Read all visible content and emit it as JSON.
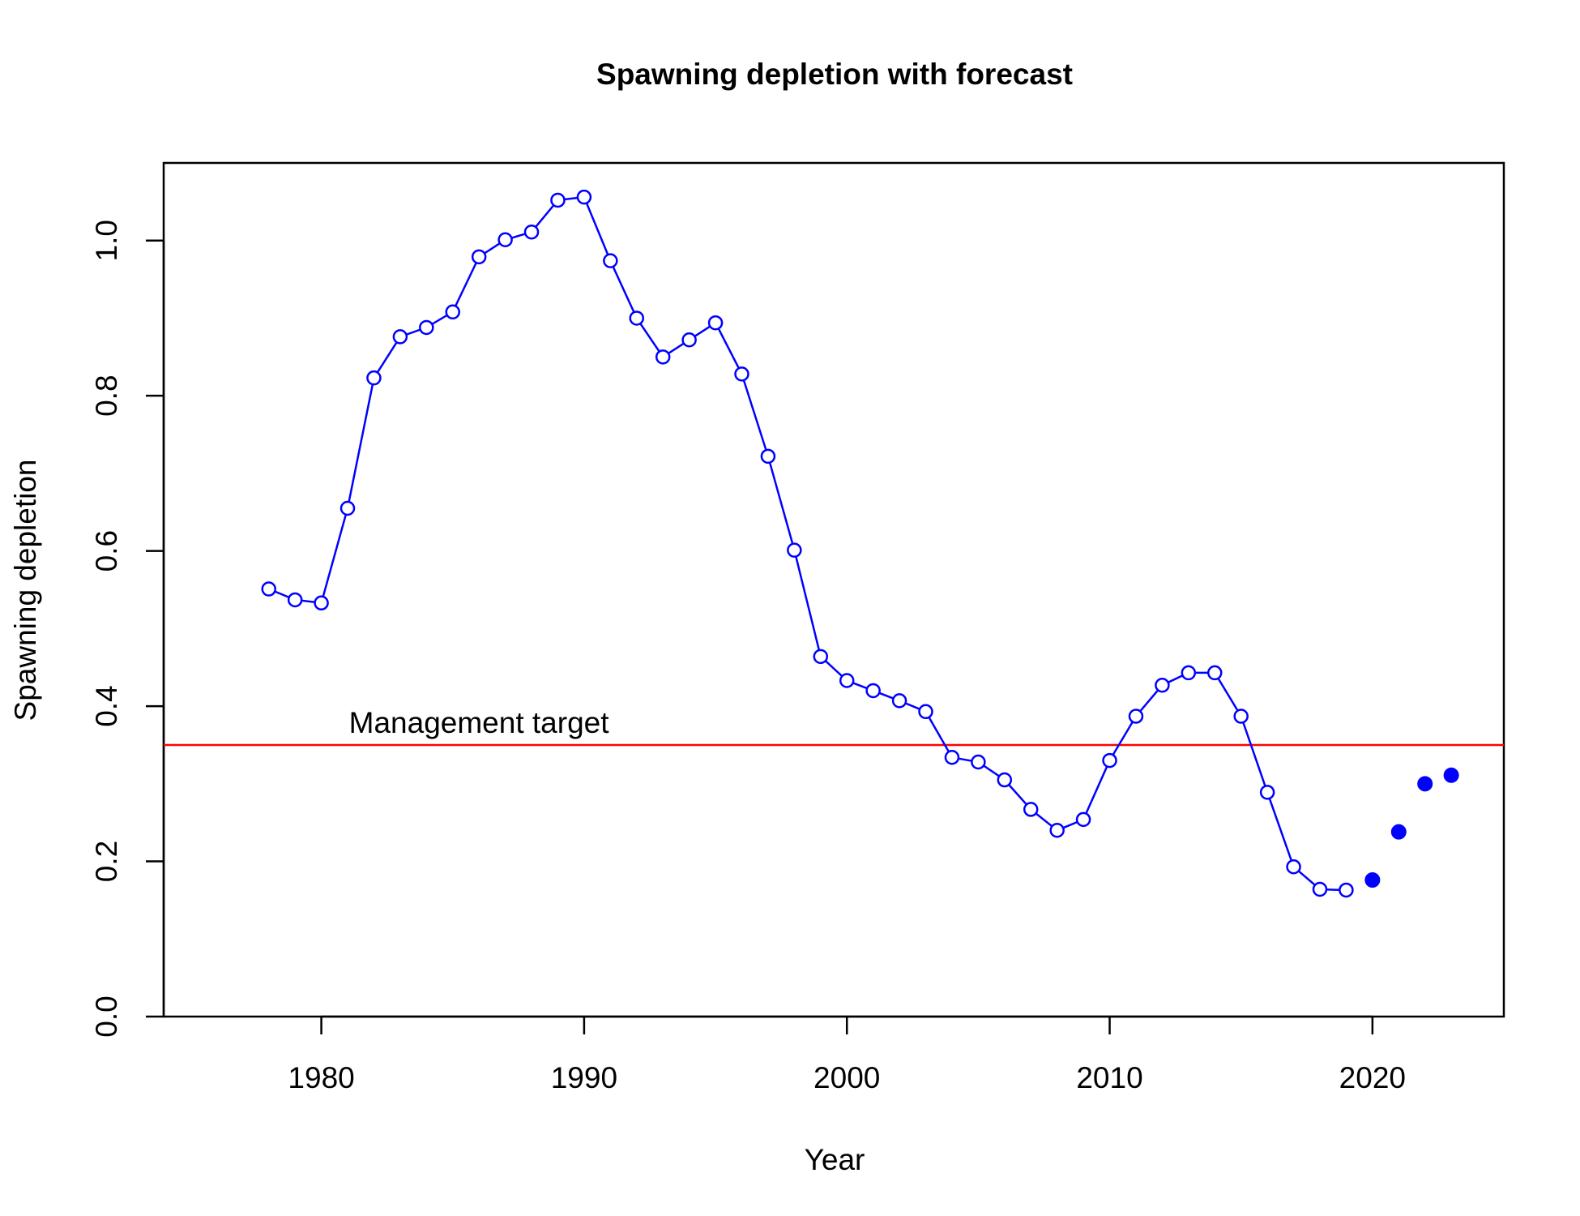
{
  "chart_data": {
    "type": "line",
    "title": "Spawning depletion with forecast",
    "xlabel": "Year",
    "ylabel": "Spawning depletion",
    "xlim": [
      1974,
      2025
    ],
    "ylim": [
      0,
      1.1
    ],
    "x_ticks": [
      1980,
      1990,
      2000,
      2010,
      2020
    ],
    "y_ticks": [
      0.0,
      0.2,
      0.4,
      0.6,
      0.8,
      1.0
    ],
    "y_tick_labels": [
      "0.0",
      "0.2",
      "0.4",
      "0.6",
      "0.8",
      "1.0"
    ],
    "grid": false,
    "legend": "none",
    "series": [
      {
        "style": "line-with-open-circles",
        "color": "#0000FF",
        "x": [
          1978,
          1979,
          1980,
          1981,
          1982,
          1983,
          1984,
          1985,
          1986,
          1987,
          1988,
          1989,
          1990,
          1991,
          1992,
          1993,
          1994,
          1995,
          1996,
          1997,
          1998,
          1999,
          2000,
          2001,
          2002,
          2003,
          2004,
          2005,
          2006,
          2007,
          2008,
          2009,
          2010,
          2011,
          2012,
          2013,
          2014,
          2015,
          2016,
          2017,
          2018,
          2019
        ],
        "values": [
          0.551,
          0.537,
          0.533,
          0.655,
          0.823,
          0.876,
          0.888,
          0.908,
          0.979,
          1.001,
          1.011,
          1.052,
          1.056,
          0.974,
          0.9,
          0.85,
          0.872,
          0.894,
          0.828,
          0.722,
          0.601,
          0.464,
          0.433,
          0.42,
          0.407,
          0.393,
          0.334,
          0.328,
          0.305,
          0.267,
          0.24,
          0.254,
          0.33,
          0.387,
          0.427,
          0.443,
          0.443,
          0.387,
          0.289,
          0.193,
          0.164,
          0.163
        ]
      },
      {
        "style": "filled-points",
        "color": "#0000FF",
        "x": [
          2020,
          2021,
          2022,
          2023
        ],
        "values": [
          0.176,
          0.238,
          0.3,
          0.311
        ]
      }
    ],
    "reference_line": {
      "y": 0.35,
      "color": "#FF0000",
      "label": "Management target"
    }
  }
}
